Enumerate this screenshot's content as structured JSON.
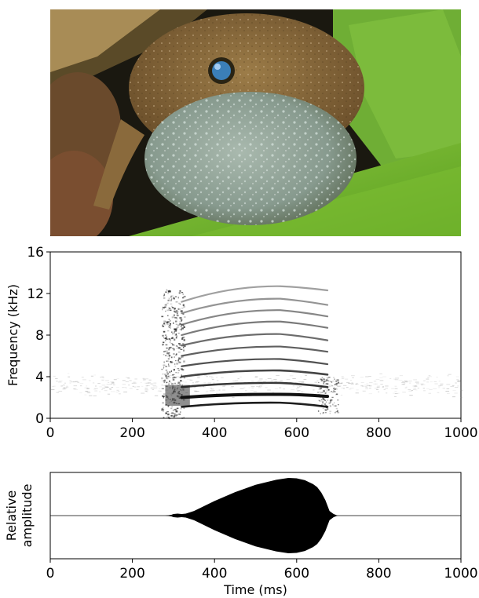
{
  "photo": {
    "subject": "frog-with-inflated-vocal-sac",
    "colors": {
      "leaf": "#6fb52c",
      "frog_skin": "#8a6a3c",
      "vocal_sac": "#8fa096",
      "eye": "#3b7fb8",
      "background": "#1c1a10"
    }
  },
  "chart_data": [
    {
      "type": "heatmap",
      "subtype": "spectrogram",
      "title": "",
      "xlabel": "",
      "ylabel": "Frequency (kHz)",
      "xlim": [
        0,
        1000
      ],
      "ylim": [
        0,
        16
      ],
      "x_ticks": [
        "0",
        "200",
        "400",
        "600",
        "800",
        "1000"
      ],
      "y_ticks": [
        "0",
        "4",
        "8",
        "12",
        "16"
      ],
      "call_start_ms": 280,
      "call_end_ms": 690,
      "harmonic_onset_ms": 320,
      "harmonics": [
        {
          "start_khz": 1.1,
          "peak_khz": 1.5,
          "peak_ms": 560,
          "end_khz": 1.1
        },
        {
          "start_khz": 2.0,
          "peak_khz": 2.3,
          "peak_ms": 560,
          "end_khz": 2.1
        },
        {
          "start_khz": 3.0,
          "peak_khz": 3.4,
          "peak_ms": 560,
          "end_khz": 3.0
        },
        {
          "start_khz": 4.0,
          "peak_khz": 4.6,
          "peak_ms": 560,
          "end_khz": 4.2
        },
        {
          "start_khz": 5.0,
          "peak_khz": 5.7,
          "peak_ms": 560,
          "end_khz": 5.2
        },
        {
          "start_khz": 6.0,
          "peak_khz": 6.9,
          "peak_ms": 560,
          "end_khz": 6.4
        },
        {
          "start_khz": 7.0,
          "peak_khz": 8.1,
          "peak_ms": 560,
          "end_khz": 7.5
        },
        {
          "start_khz": 8.0,
          "peak_khz": 9.3,
          "peak_ms": 560,
          "end_khz": 8.7
        },
        {
          "start_khz": 9.0,
          "peak_khz": 10.4,
          "peak_ms": 560,
          "end_khz": 9.8
        },
        {
          "start_khz": 10.1,
          "peak_khz": 11.5,
          "peak_ms": 560,
          "end_khz": 10.9
        },
        {
          "start_khz": 11.2,
          "peak_khz": 12.7,
          "peak_ms": 560,
          "end_khz": 12.3
        }
      ],
      "noise_band_khz": [
        2.5,
        4.0
      ]
    },
    {
      "type": "area",
      "subtype": "waveform",
      "title": "",
      "xlabel": "Time (ms)",
      "ylabel": "Relative amplitude",
      "xlim": [
        0,
        1000
      ],
      "ylim": [
        -1,
        1
      ],
      "x_ticks": [
        "0",
        "200",
        "400",
        "600",
        "800",
        "1000"
      ],
      "envelope": {
        "x": [
          0,
          280,
          295,
          300,
          310,
          320,
          330,
          350,
          400,
          450,
          500,
          550,
          580,
          600,
          620,
          640,
          650,
          660,
          670,
          680,
          690,
          700,
          1000
        ],
        "y": [
          0,
          0,
          0.02,
          0.04,
          0.05,
          0.04,
          0.05,
          0.12,
          0.38,
          0.61,
          0.8,
          0.93,
          0.98,
          0.97,
          0.92,
          0.82,
          0.74,
          0.6,
          0.4,
          0.12,
          0.04,
          0,
          0
        ]
      }
    }
  ]
}
